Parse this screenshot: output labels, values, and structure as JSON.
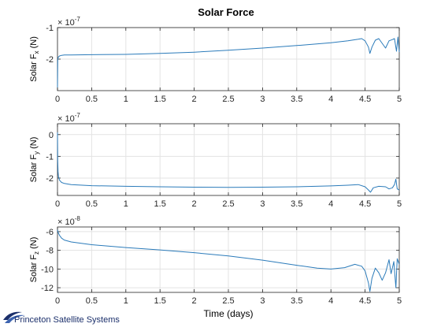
{
  "figure_title": "Solar Force",
  "logo_text": "Princeton Satellite Systems",
  "colors": {
    "line": "#2b7bba",
    "grid": "#e3e3e3",
    "axis": "#262626"
  },
  "chart_data": [
    {
      "type": "line",
      "title": "Solar Force",
      "ylabel_parts": [
        "Solar F",
        "x",
        " (N)"
      ],
      "exponent_base": "× 10",
      "exponent": "-7",
      "xlim": [
        0,
        5
      ],
      "ylim": [
        -3,
        -1
      ],
      "xticks": [
        0,
        0.5,
        1,
        1.5,
        2,
        2.5,
        3,
        3.5,
        4,
        4.5,
        5
      ],
      "xtick_labels": [
        "0",
        "0.5",
        "1",
        "1.5",
        "2",
        "2.5",
        "3",
        "3.5",
        "4",
        "4.5",
        "5"
      ],
      "yticks": [
        -2,
        -1
      ],
      "ytick_labels": [
        "-2",
        "-1"
      ],
      "grid": true,
      "x": [
        0,
        0.004,
        0.008,
        0.015,
        0.03,
        0.06,
        0.1,
        0.2,
        0.5,
        1,
        1.5,
        2,
        2.5,
        3,
        3.5,
        4,
        4.25,
        4.4,
        4.45,
        4.5,
        4.55,
        4.57,
        4.6,
        4.65,
        4.7,
        4.75,
        4.8,
        4.85,
        4.9,
        4.93,
        4.96,
        4.98,
        5
      ],
      "y": [
        -2.9,
        -2.05,
        -1.96,
        -1.93,
        -1.9,
        -1.88,
        -1.87,
        -1.87,
        -1.86,
        -1.85,
        -1.82,
        -1.78,
        -1.72,
        -1.65,
        -1.57,
        -1.48,
        -1.42,
        -1.37,
        -1.35,
        -1.42,
        -1.62,
        -1.82,
        -1.62,
        -1.4,
        -1.35,
        -1.5,
        -1.65,
        -1.42,
        -1.38,
        -1.35,
        -1.75,
        -1.3,
        -1.78
      ]
    },
    {
      "type": "line",
      "ylabel_parts": [
        "Solar F",
        "y",
        " (N)"
      ],
      "exponent_base": "× 10",
      "exponent": "-7",
      "xlim": [
        0,
        5
      ],
      "ylim": [
        -2.8,
        0.5
      ],
      "xticks": [
        0,
        0.5,
        1,
        1.5,
        2,
        2.5,
        3,
        3.5,
        4,
        4.5,
        5
      ],
      "xtick_labels": [
        "0",
        "0.5",
        "1",
        "1.5",
        "2",
        "2.5",
        "3",
        "3.5",
        "4",
        "4.5",
        "5"
      ],
      "yticks": [
        -2,
        -1,
        0
      ],
      "ytick_labels": [
        "-2",
        "-1",
        "0"
      ],
      "grid": true,
      "x": [
        0,
        0.004,
        0.008,
        0.015,
        0.03,
        0.06,
        0.1,
        0.2,
        0.5,
        1,
        1.5,
        2,
        2.5,
        3,
        3.5,
        4,
        4.25,
        4.4,
        4.5,
        4.55,
        4.58,
        4.62,
        4.7,
        4.8,
        4.85,
        4.9,
        4.93,
        4.95,
        4.97,
        5
      ],
      "y": [
        0.1,
        -1.2,
        -1.7,
        -1.95,
        -2.1,
        -2.2,
        -2.25,
        -2.3,
        -2.35,
        -2.38,
        -2.4,
        -2.42,
        -2.43,
        -2.42,
        -2.4,
        -2.36,
        -2.33,
        -2.3,
        -2.4,
        -2.55,
        -2.65,
        -2.45,
        -2.38,
        -2.4,
        -2.5,
        -2.45,
        -2.3,
        -2.05,
        -2.5,
        -2.55
      ]
    },
    {
      "type": "line",
      "xlabel": "Time (days)",
      "ylabel_parts": [
        "Solar F",
        "z",
        " (N)"
      ],
      "exponent_base": "× 10",
      "exponent": "-8",
      "xlim": [
        0,
        5
      ],
      "ylim": [
        -12.5,
        -5.5
      ],
      "xticks": [
        0,
        0.5,
        1,
        1.5,
        2,
        2.5,
        3,
        3.5,
        4,
        4.5,
        5
      ],
      "xtick_labels": [
        "0",
        "0.5",
        "1",
        "1.5",
        "2",
        "2.5",
        "3",
        "3.5",
        "4",
        "4.5",
        "5"
      ],
      "yticks": [
        -12,
        -10,
        -8,
        -6
      ],
      "ytick_labels": [
        "-12",
        "-10",
        "-8",
        "-6"
      ],
      "grid": true,
      "x": [
        0,
        0.01,
        0.03,
        0.06,
        0.1,
        0.2,
        0.5,
        1,
        1.5,
        2,
        2.5,
        3,
        3.5,
        3.8,
        4,
        4.2,
        4.35,
        4.45,
        4.5,
        4.55,
        4.57,
        4.6,
        4.65,
        4.7,
        4.75,
        4.8,
        4.85,
        4.88,
        4.92,
        4.95,
        4.97,
        5
      ],
      "y": [
        -5.8,
        -6.1,
        -6.4,
        -6.7,
        -6.9,
        -7.1,
        -7.4,
        -7.7,
        -7.95,
        -8.25,
        -8.6,
        -9.05,
        -9.6,
        -9.9,
        -10.0,
        -9.85,
        -9.5,
        -9.7,
        -10.2,
        -11.5,
        -12.4,
        -11.0,
        -9.9,
        -10.4,
        -11.2,
        -10.4,
        -9.0,
        -10.5,
        -9.2,
        -12.0,
        -8.9,
        -9.5
      ]
    }
  ]
}
